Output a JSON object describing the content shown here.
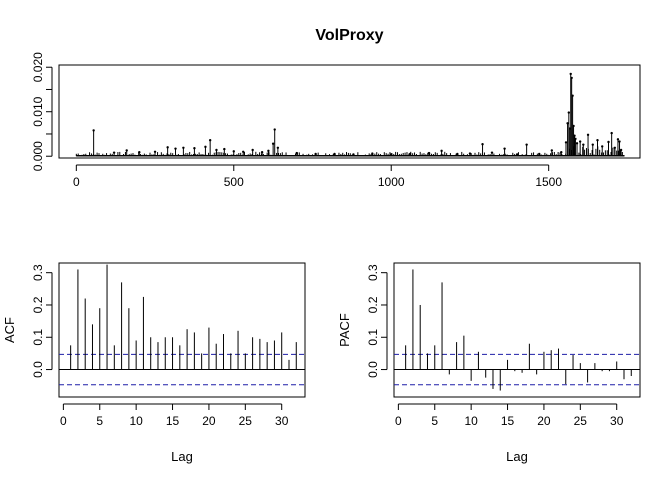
{
  "chart_data": [
    {
      "type": "line",
      "style": "h-spikes with points",
      "title": "VolProxy",
      "xlabel": "",
      "ylabel": "",
      "xlim": [
        -55,
        1790
      ],
      "ylim": [
        -0.0004,
        0.0205
      ],
      "x_ticks": [
        0,
        500,
        1000,
        1500
      ],
      "y_ticks": [
        0.0,
        0.005,
        0.01,
        0.015,
        0.02
      ],
      "y_tick_labels": [
        "0.000",
        "",
        "0.010",
        "",
        "0.020"
      ],
      "n_obs": 1740,
      "base_level": 0.0001,
      "series": [
        {
          "x": [
            55,
            120,
            160,
            200,
            250,
            290,
            315,
            340,
            375,
            410,
            425,
            445,
            470,
            500,
            530,
            560,
            590,
            610,
            625,
            630,
            640,
            700,
            760,
            820,
            880,
            940,
            1000,
            1060,
            1120,
            1160,
            1210,
            1250,
            1290,
            1320,
            1360,
            1400,
            1430,
            1470,
            1510,
            1540,
            1555,
            1560,
            1564,
            1567,
            1570,
            1573,
            1576,
            1579,
            1582,
            1585,
            1590,
            1600,
            1610,
            1625,
            1640,
            1655,
            1670,
            1690,
            1700,
            1710,
            1720,
            1725,
            1730
          ],
          "values": [
            0.0058,
            0.0008,
            0.0013,
            0.0009,
            0.001,
            0.002,
            0.0017,
            0.0019,
            0.0018,
            0.0021,
            0.0036,
            0.0014,
            0.0016,
            0.0011,
            0.001,
            0.0014,
            0.0009,
            0.0012,
            0.0028,
            0.006,
            0.0019,
            0.0007,
            0.0005,
            0.0005,
            0.0004,
            0.0006,
            0.0004,
            0.0005,
            0.0007,
            0.0012,
            0.0005,
            0.0006,
            0.0027,
            0.0008,
            0.0017,
            0.0004,
            0.0026,
            0.0005,
            0.0013,
            0.0009,
            0.0031,
            0.0074,
            0.0098,
            0.0062,
            0.0185,
            0.0176,
            0.0136,
            0.0068,
            0.0046,
            0.0039,
            0.0029,
            0.0033,
            0.0026,
            0.0048,
            0.0026,
            0.0036,
            0.0022,
            0.0032,
            0.0052,
            0.0019,
            0.0038,
            0.0033,
            0.0014
          ]
        }
      ]
    },
    {
      "type": "bar",
      "style": "ACF spikes",
      "title": "",
      "xlabel": "Lag",
      "ylabel": "ACF",
      "xlim": [
        -0.6,
        33.2
      ],
      "ylim": [
        -0.085,
        0.33
      ],
      "x_ticks": [
        0,
        5,
        10,
        15,
        20,
        25,
        30
      ],
      "y_ticks": [
        0.0,
        0.1,
        0.2,
        0.3
      ],
      "y_tick_labels": [
        "0.0",
        "0.1",
        "0.2",
        "0.3"
      ],
      "ci": 0.047,
      "lags": [
        1,
        2,
        3,
        4,
        5,
        6,
        7,
        8,
        9,
        10,
        11,
        12,
        13,
        14,
        15,
        16,
        17,
        18,
        19,
        20,
        21,
        22,
        23,
        24,
        25,
        26,
        27,
        28,
        29,
        30,
        31,
        32
      ],
      "values": [
        0.075,
        0.31,
        0.22,
        0.14,
        0.19,
        0.325,
        0.075,
        0.27,
        0.19,
        0.09,
        0.225,
        0.1,
        0.085,
        0.1,
        0.1,
        0.075,
        0.125,
        0.115,
        0.05,
        0.13,
        0.08,
        0.11,
        0.05,
        0.12,
        0.05,
        0.1,
        0.095,
        0.085,
        0.09,
        0.115,
        0.03,
        0.085
      ]
    },
    {
      "type": "bar",
      "style": "PACF spikes",
      "title": "",
      "xlabel": "Lag",
      "ylabel": "PACF",
      "xlim": [
        -0.6,
        33.2
      ],
      "ylim": [
        -0.085,
        0.33
      ],
      "x_ticks": [
        0,
        5,
        10,
        15,
        20,
        25,
        30
      ],
      "y_ticks": [
        0.0,
        0.1,
        0.2,
        0.3
      ],
      "y_tick_labels": [
        "0.0",
        "0.1",
        "0.2",
        "0.3"
      ],
      "ci": 0.047,
      "lags": [
        1,
        2,
        3,
        4,
        5,
        6,
        7,
        8,
        9,
        10,
        11,
        12,
        13,
        14,
        15,
        16,
        17,
        18,
        19,
        20,
        21,
        22,
        23,
        24,
        25,
        26,
        27,
        28,
        29,
        30,
        31,
        32
      ],
      "values": [
        0.075,
        0.31,
        0.2,
        0.05,
        0.075,
        0.27,
        -0.015,
        0.085,
        0.105,
        -0.035,
        0.055,
        -0.025,
        -0.06,
        -0.065,
        0.03,
        -0.005,
        -0.01,
        0.08,
        -0.015,
        0.055,
        0.06,
        0.065,
        -0.045,
        0.045,
        0.02,
        -0.04,
        0.02,
        -0.005,
        -0.005,
        0.025,
        -0.03,
        -0.02
      ]
    }
  ]
}
